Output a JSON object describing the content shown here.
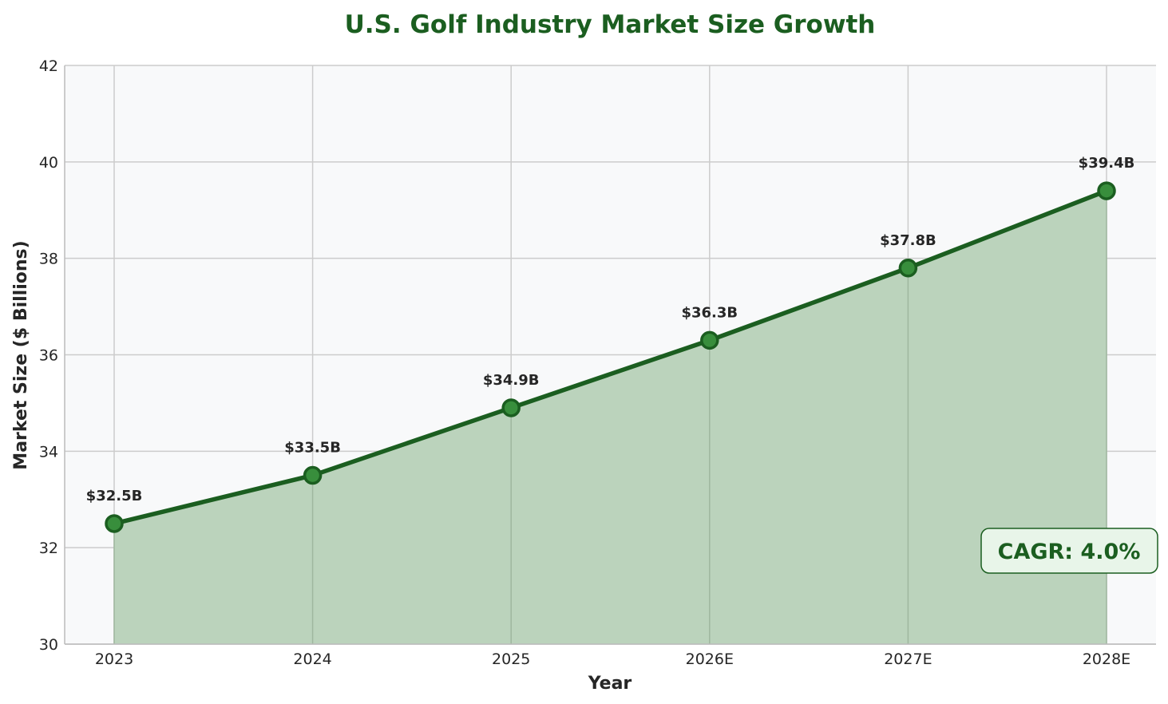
{
  "chart_data": {
    "type": "area",
    "title": "U.S. Golf Industry Market Size Growth",
    "xlabel": "Year",
    "ylabel": "Market Size ($ Billions)",
    "categories": [
      "2023",
      "2024",
      "2025",
      "2026E",
      "2027E",
      "2028E"
    ],
    "values": [
      32.5,
      33.5,
      34.9,
      36.3,
      37.8,
      39.4
    ],
    "data_labels": [
      "$32.5B",
      "$33.5B",
      "$34.9B",
      "$36.3B",
      "$37.8B",
      "$39.4B"
    ],
    "ylim": [
      30,
      42
    ],
    "yticks": [
      "30",
      "32",
      "34",
      "36",
      "38",
      "40",
      "42"
    ],
    "grid": true,
    "annotation": "CAGR: 4.0%",
    "colors": {
      "line": "#1b5e20",
      "marker": "#388e3c",
      "fill": "#bbd3bc",
      "plot_bg": "#f8f9fa",
      "annotation_bg": "#e8f5e9"
    }
  }
}
